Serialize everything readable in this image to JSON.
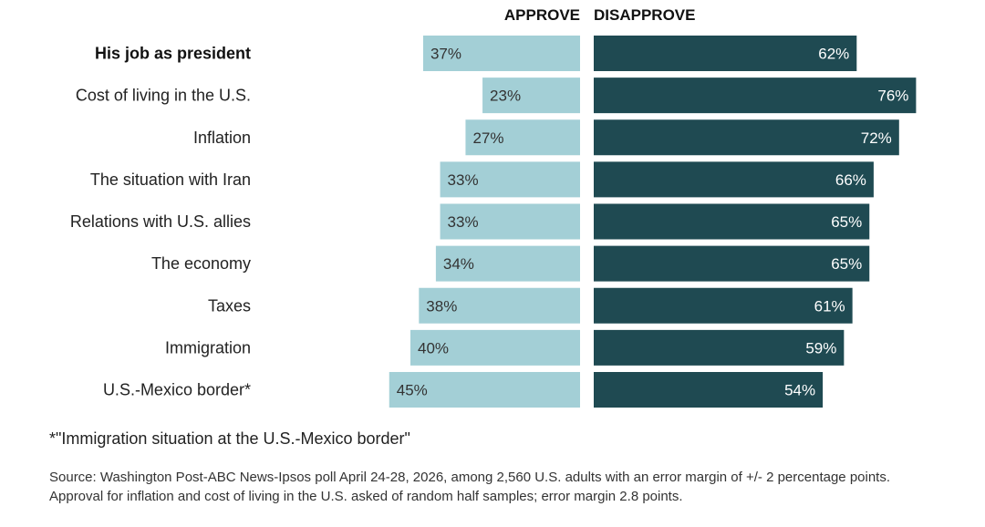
{
  "chart_data": {
    "type": "bar",
    "orientation": "horizontal-diverging",
    "categories": [
      "His job as president",
      "Cost of living in the U.S.",
      "Inflation",
      "The situation with Iran",
      "Relations with U.S. allies",
      "The economy",
      "Taxes",
      "Immigration",
      "U.S.-Mexico border*"
    ],
    "highlighted_category": "His job as president",
    "series": [
      {
        "name": "APPROVE",
        "values": [
          37,
          23,
          27,
          33,
          33,
          34,
          38,
          40,
          45
        ],
        "labels": [
          "37%",
          "23%",
          "27%",
          "33%",
          "33%",
          "34%",
          "38%",
          "40%",
          "45%"
        ],
        "color": "#a3cfd6"
      },
      {
        "name": "DISAPPROVE",
        "values": [
          62,
          76,
          72,
          66,
          65,
          65,
          61,
          59,
          54
        ],
        "labels": [
          "62%",
          "76%",
          "72%",
          "66%",
          "65%",
          "65%",
          "61%",
          "59%",
          "54%"
        ],
        "color": "#1f4a52"
      }
    ],
    "unit": "%",
    "grid": false
  },
  "footnote": "*\"Immigration situation at the U.S.-Mexico border\"",
  "source": "Source: Washington Post-ABC News-Ipsos poll April 24-28, 2026, among 2,560 U.S. adults with an error margin of +/- 2 percentage points. Approval for inflation and cost of living in the U.S. asked of random half samples; error margin 2.8 points."
}
